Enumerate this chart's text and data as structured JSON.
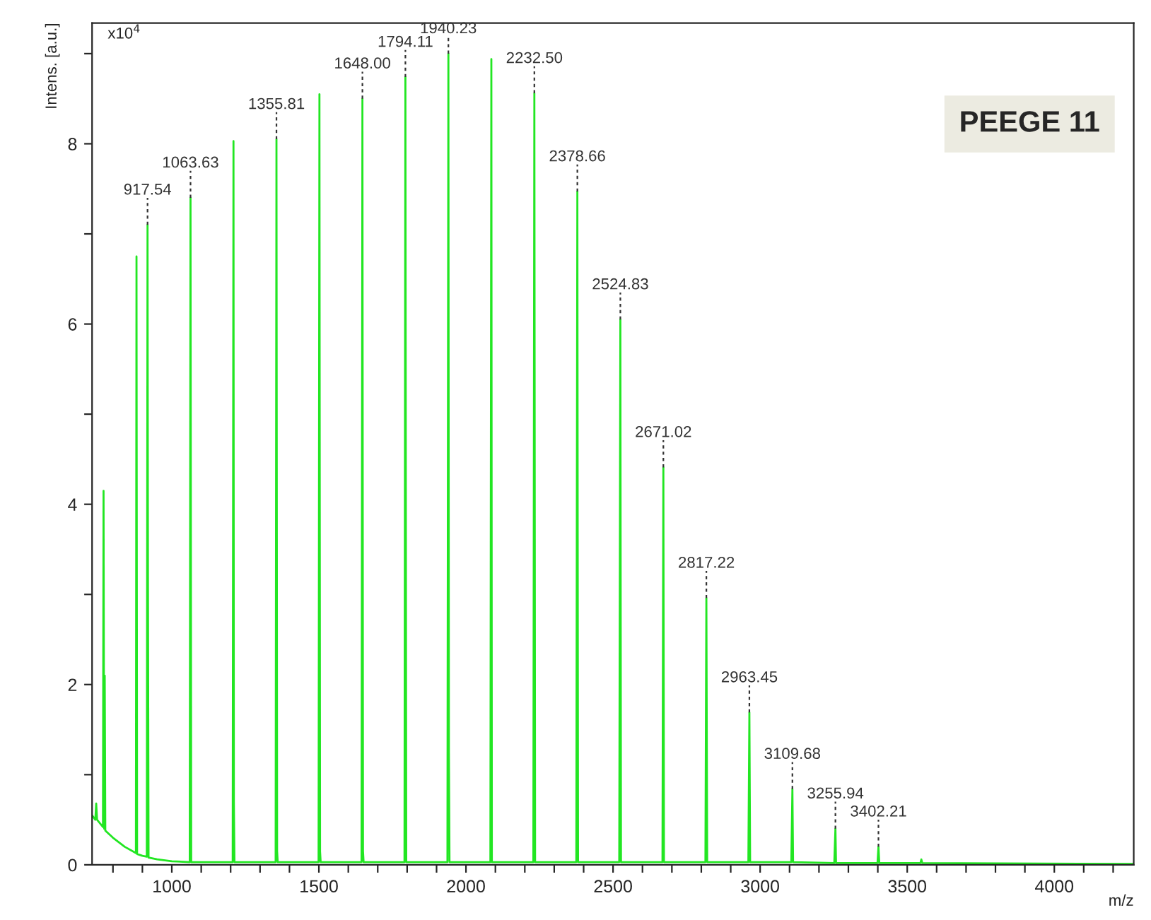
{
  "chart_data": {
    "type": "line",
    "title": "PEEGE 11",
    "xlabel": "m/z",
    "ylabel": "Intens. [a.u.]",
    "xlim": [
      729,
      4270
    ],
    "ylim": [
      0,
      9.34
    ],
    "xticks": [
      {
        "value": 800,
        "label": null
      },
      {
        "value": 900,
        "label": null
      },
      {
        "value": 1000,
        "label": "1000"
      },
      {
        "value": 1100,
        "label": null
      },
      {
        "value": 1200,
        "label": null
      },
      {
        "value": 1300,
        "label": null
      },
      {
        "value": 1400,
        "label": null
      },
      {
        "value": 1500,
        "label": "1500"
      },
      {
        "value": 1600,
        "label": null
      },
      {
        "value": 1700,
        "label": null
      },
      {
        "value": 1800,
        "label": null
      },
      {
        "value": 1900,
        "label": null
      },
      {
        "value": 2000,
        "label": "2000"
      },
      {
        "value": 2100,
        "label": null
      },
      {
        "value": 2200,
        "label": null
      },
      {
        "value": 2300,
        "label": null
      },
      {
        "value": 2400,
        "label": null
      },
      {
        "value": 2500,
        "label": "2500"
      },
      {
        "value": 2600,
        "label": null
      },
      {
        "value": 2700,
        "label": null
      },
      {
        "value": 2800,
        "label": null
      },
      {
        "value": 2900,
        "label": null
      },
      {
        "value": 3000,
        "label": "3000"
      },
      {
        "value": 3100,
        "label": null
      },
      {
        "value": 3200,
        "label": null
      },
      {
        "value": 3300,
        "label": null
      },
      {
        "value": 3400,
        "label": null
      },
      {
        "value": 3500,
        "label": "3500"
      },
      {
        "value": 3600,
        "label": null
      },
      {
        "value": 3700,
        "label": null
      },
      {
        "value": 3800,
        "label": null
      },
      {
        "value": 3900,
        "label": null
      },
      {
        "value": 4000,
        "label": "4000"
      },
      {
        "value": 4100,
        "label": null
      },
      {
        "value": 4200,
        "label": null
      }
    ],
    "yticks": [
      0,
      {
        "value": 1,
        "label": null
      },
      2,
      {
        "value": 3,
        "label": null
      },
      4,
      {
        "value": 5,
        "label": null
      },
      6,
      {
        "value": 7,
        "label": null
      },
      8,
      {
        "value": 9,
        "label": null
      }
    ],
    "grid": false,
    "legend": false,
    "marker": "none",
    "line_style": "solid",
    "series": [
      {
        "color": "#22e622",
        "x": [
          729,
          740,
          743,
          746,
          766,
          768,
          770,
          772,
          774,
          800,
          840,
          878,
          880,
          882,
          900,
          915,
          917.54,
          919,
          921,
          950,
          1000,
          1061,
          1063.63,
          1066,
          1207,
          1209.7,
          1211,
          1213,
          1353,
          1355.81,
          1358,
          1360,
          1499,
          1501.9,
          1504,
          1506,
          1645,
          1648.0,
          1650,
          1652,
          1791,
          1794.11,
          1797,
          1937,
          1940.23,
          1942,
          1944,
          2083,
          2086.3,
          2088,
          2229,
          2232.5,
          2235,
          2375,
          2378.66,
          2381,
          2521,
          2524.83,
          2527,
          2668,
          2671.02,
          2673,
          2814,
          2817.22,
          2820,
          2960,
          2963.45,
          2966,
          3106,
          3109.68,
          3112,
          3252,
          3255.94,
          3258,
          3399,
          3402.21,
          3405,
          3545,
          3548,
          3551,
          4270
        ],
        "values": [
          0.55,
          0.5,
          0.68,
          0.5,
          0.42,
          4.15,
          0.4,
          2.1,
          0.38,
          0.3,
          0.2,
          0.13,
          6.75,
          0.12,
          0.1,
          0.09,
          7.1,
          3.05,
          0.08,
          0.06,
          0.04,
          0.03,
          7.4,
          0.03,
          0.03,
          8.03,
          0.7,
          0.03,
          0.03,
          8.05,
          0.15,
          0.03,
          0.03,
          8.55,
          0.15,
          0.03,
          0.03,
          8.5,
          0.15,
          0.03,
          0.03,
          8.74,
          0.03,
          0.03,
          9.0,
          1.25,
          0.03,
          0.03,
          8.94,
          0.03,
          0.03,
          8.56,
          0.03,
          0.03,
          7.47,
          0.03,
          0.03,
          6.05,
          0.03,
          0.03,
          4.41,
          0.03,
          0.03,
          2.96,
          0.03,
          0.03,
          1.69,
          0.03,
          0.03,
          0.84,
          0.03,
          0.02,
          0.4,
          0.02,
          0.02,
          0.2,
          0.02,
          0.02,
          0.06,
          0.02,
          0.01
        ]
      }
    ],
    "annotations": [
      "x10$^{4}$",
      {
        "text": "917.54",
        "x": 917.54,
        "y": 7.1
      },
      {
        "text": "1063.63",
        "x": 1063.63,
        "y": 7.4
      },
      {
        "text": "1355.81",
        "x": 1355.81,
        "y": 8.05
      },
      {
        "text": "1648.00",
        "x": 1648.0,
        "y": 8.5
      },
      {
        "text": "1794.11",
        "x": 1794.11,
        "y": 8.74
      },
      {
        "text": "1940.23",
        "x": 1940.23,
        "y": 9.0
      },
      {
        "text": "2232.50",
        "x": 2232.5,
        "y": 8.56
      },
      {
        "text": "2378.66",
        "x": 2378.66,
        "y": 7.47
      },
      {
        "text": "2524.83",
        "x": 2524.83,
        "y": 6.05
      },
      {
        "text": "2671.02",
        "x": 2671.02,
        "y": 4.41
      },
      {
        "text": "2817.22",
        "x": 2817.22,
        "y": 2.96
      },
      {
        "text": "2963.45",
        "x": 2963.45,
        "y": 1.69
      },
      {
        "text": "3109.68",
        "x": 3109.68,
        "y": 0.84
      },
      {
        "text": "3255.94",
        "x": 3255.94,
        "y": 0.4
      },
      {
        "text": "3402.21",
        "x": 3402.21,
        "y": 0.2
      }
    ]
  }
}
